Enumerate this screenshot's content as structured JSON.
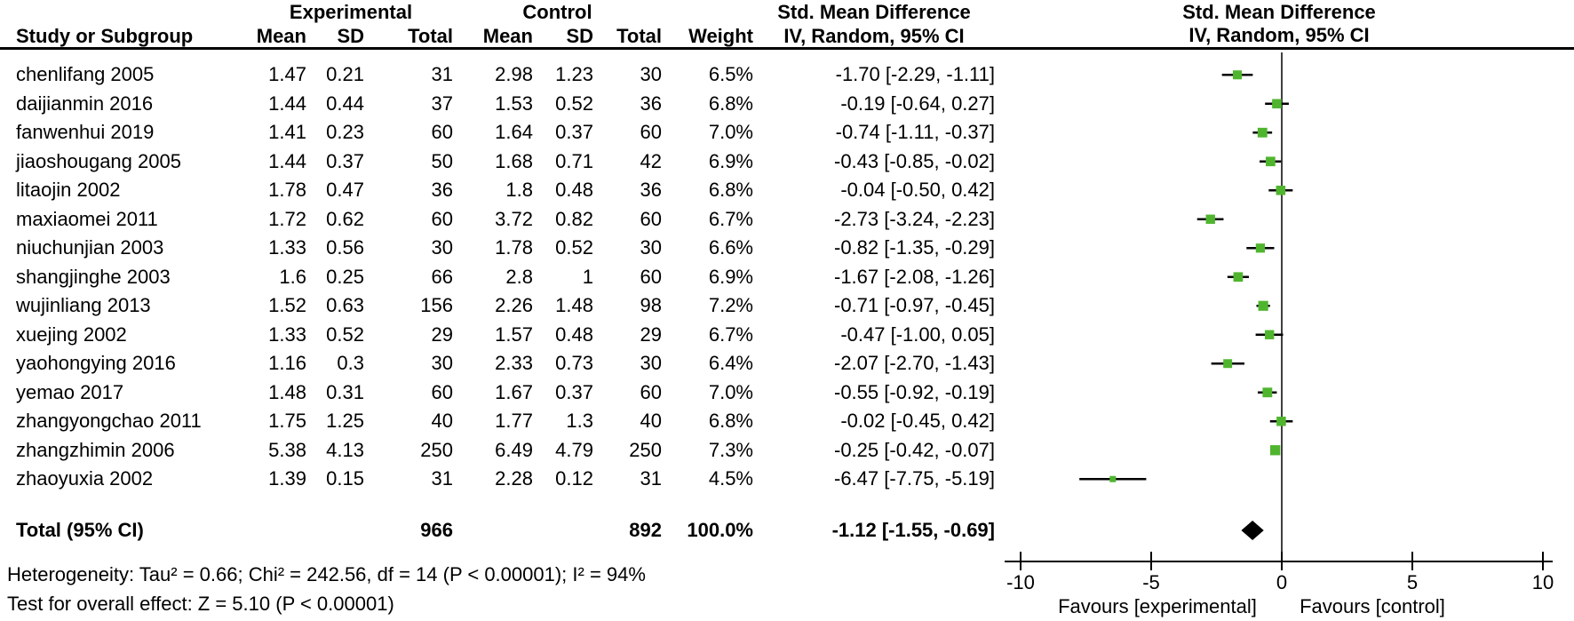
{
  "header": {
    "group_experimental": "Experimental",
    "group_control": "Control",
    "smd_left": "Std. Mean Difference",
    "smd_right": "Std. Mean Difference",
    "col_study": "Study or Subgroup",
    "col_mean_exp": "Mean",
    "col_sd_exp": "SD",
    "col_total_exp": "Total",
    "col_mean_ctrl": "Mean",
    "col_sd_ctrl": "SD",
    "col_total_ctrl": "Total",
    "col_weight": "Weight",
    "method_left": "IV, Random, 95% CI",
    "method_right": "IV, Random, 95% CI"
  },
  "chart_data": {
    "type": "forest",
    "title": "Std. Mean Difference, IV, Random, 95% CI forest plot",
    "x_axis": {
      "ticks": [
        -10,
        -5,
        0,
        5,
        10
      ],
      "min": -10,
      "max": 10
    },
    "studies": [
      {
        "name": "chenlifang 2005",
        "exp": {
          "mean": "1.47",
          "sd": "0.21",
          "total": "31"
        },
        "ctrl": {
          "mean": "2.98",
          "sd": "1.23",
          "total": "30"
        },
        "weight_pct": 6.5,
        "weight_text": "6.5%",
        "smd": -1.7,
        "ci_low": -2.29,
        "ci_high": -1.11,
        "ci_text": "-1.70 [-2.29, -1.11]"
      },
      {
        "name": "daijianmin 2016",
        "exp": {
          "mean": "1.44",
          "sd": "0.44",
          "total": "37"
        },
        "ctrl": {
          "mean": "1.53",
          "sd": "0.52",
          "total": "36"
        },
        "weight_pct": 6.8,
        "weight_text": "6.8%",
        "smd": -0.19,
        "ci_low": -0.64,
        "ci_high": 0.27,
        "ci_text": "-0.19 [-0.64, 0.27]"
      },
      {
        "name": "fanwenhui 2019",
        "exp": {
          "mean": "1.41",
          "sd": "0.23",
          "total": "60"
        },
        "ctrl": {
          "mean": "1.64",
          "sd": "0.37",
          "total": "60"
        },
        "weight_pct": 7.0,
        "weight_text": "7.0%",
        "smd": -0.74,
        "ci_low": -1.11,
        "ci_high": -0.37,
        "ci_text": "-0.74 [-1.11, -0.37]"
      },
      {
        "name": "jiaoshougang 2005",
        "exp": {
          "mean": "1.44",
          "sd": "0.37",
          "total": "50"
        },
        "ctrl": {
          "mean": "1.68",
          "sd": "0.71",
          "total": "42"
        },
        "weight_pct": 6.9,
        "weight_text": "6.9%",
        "smd": -0.43,
        "ci_low": -0.85,
        "ci_high": -0.02,
        "ci_text": "-0.43 [-0.85, -0.02]"
      },
      {
        "name": "litaojin 2002",
        "exp": {
          "mean": "1.78",
          "sd": "0.47",
          "total": "36"
        },
        "ctrl": {
          "mean": "1.8",
          "sd": "0.48",
          "total": "36"
        },
        "weight_pct": 6.8,
        "weight_text": "6.8%",
        "smd": -0.04,
        "ci_low": -0.5,
        "ci_high": 0.42,
        "ci_text": "-0.04 [-0.50, 0.42]"
      },
      {
        "name": "maxiaomei 2011",
        "exp": {
          "mean": "1.72",
          "sd": "0.62",
          "total": "60"
        },
        "ctrl": {
          "mean": "3.72",
          "sd": "0.82",
          "total": "60"
        },
        "weight_pct": 6.7,
        "weight_text": "6.7%",
        "smd": -2.73,
        "ci_low": -3.24,
        "ci_high": -2.23,
        "ci_text": "-2.73 [-3.24, -2.23]"
      },
      {
        "name": "niuchunjian 2003",
        "exp": {
          "mean": "1.33",
          "sd": "0.56",
          "total": "30"
        },
        "ctrl": {
          "mean": "1.78",
          "sd": "0.52",
          "total": "30"
        },
        "weight_pct": 6.6,
        "weight_text": "6.6%",
        "smd": -0.82,
        "ci_low": -1.35,
        "ci_high": -0.29,
        "ci_text": "-0.82 [-1.35, -0.29]"
      },
      {
        "name": "shangjinghe 2003",
        "exp": {
          "mean": "1.6",
          "sd": "0.25",
          "total": "66"
        },
        "ctrl": {
          "mean": "2.8",
          "sd": "1",
          "total": "60"
        },
        "weight_pct": 6.9,
        "weight_text": "6.9%",
        "smd": -1.67,
        "ci_low": -2.08,
        "ci_high": -1.26,
        "ci_text": "-1.67 [-2.08, -1.26]"
      },
      {
        "name": "wujinliang 2013",
        "exp": {
          "mean": "1.52",
          "sd": "0.63",
          "total": "156"
        },
        "ctrl": {
          "mean": "2.26",
          "sd": "1.48",
          "total": "98"
        },
        "weight_pct": 7.2,
        "weight_text": "7.2%",
        "smd": -0.71,
        "ci_low": -0.97,
        "ci_high": -0.45,
        "ci_text": "-0.71 [-0.97, -0.45]"
      },
      {
        "name": "xuejing 2002",
        "exp": {
          "mean": "1.33",
          "sd": "0.52",
          "total": "29"
        },
        "ctrl": {
          "mean": "1.57",
          "sd": "0.48",
          "total": "29"
        },
        "weight_pct": 6.7,
        "weight_text": "6.7%",
        "smd": -0.47,
        "ci_low": -1.0,
        "ci_high": 0.05,
        "ci_text": "-0.47 [-1.00, 0.05]"
      },
      {
        "name": "yaohongying 2016",
        "exp": {
          "mean": "1.16",
          "sd": "0.3",
          "total": "30"
        },
        "ctrl": {
          "mean": "2.33",
          "sd": "0.73",
          "total": "30"
        },
        "weight_pct": 6.4,
        "weight_text": "6.4%",
        "smd": -2.07,
        "ci_low": -2.7,
        "ci_high": -1.43,
        "ci_text": "-2.07 [-2.70, -1.43]"
      },
      {
        "name": "yemao 2017",
        "exp": {
          "mean": "1.48",
          "sd": "0.31",
          "total": "60"
        },
        "ctrl": {
          "mean": "1.67",
          "sd": "0.37",
          "total": "60"
        },
        "weight_pct": 7.0,
        "weight_text": "7.0%",
        "smd": -0.55,
        "ci_low": -0.92,
        "ci_high": -0.19,
        "ci_text": "-0.55 [-0.92, -0.19]"
      },
      {
        "name": "zhangyongchao 2011",
        "exp": {
          "mean": "1.75",
          "sd": "1.25",
          "total": "40"
        },
        "ctrl": {
          "mean": "1.77",
          "sd": "1.3",
          "total": "40"
        },
        "weight_pct": 6.8,
        "weight_text": "6.8%",
        "smd": -0.02,
        "ci_low": -0.45,
        "ci_high": 0.42,
        "ci_text": "-0.02 [-0.45, 0.42]"
      },
      {
        "name": "zhangzhimin 2006",
        "exp": {
          "mean": "5.38",
          "sd": "4.13",
          "total": "250"
        },
        "ctrl": {
          "mean": "6.49",
          "sd": "4.79",
          "total": "250"
        },
        "weight_pct": 7.3,
        "weight_text": "7.3%",
        "smd": -0.25,
        "ci_low": -0.42,
        "ci_high": -0.07,
        "ci_text": "-0.25 [-0.42, -0.07]"
      },
      {
        "name": "zhaoyuxia 2002",
        "exp": {
          "mean": "1.39",
          "sd": "0.15",
          "total": "31"
        },
        "ctrl": {
          "mean": "2.28",
          "sd": "0.12",
          "total": "31"
        },
        "weight_pct": 4.5,
        "weight_text": "4.5%",
        "smd": -6.47,
        "ci_low": -7.75,
        "ci_high": -5.19,
        "ci_text": "-6.47 [-7.75, -5.19]"
      }
    ],
    "overall": {
      "label": "Total (95% CI)",
      "exp_total": "966",
      "ctrl_total": "892",
      "weight_text": "100.0%",
      "smd": -1.12,
      "ci_low": -1.55,
      "ci_high": -0.69,
      "ci_text": "-1.12 [-1.55, -0.69]"
    }
  },
  "footnotes": {
    "heterogeneity": "Heterogeneity: Tau² = 0.66; Chi² = 242.56, df = 14 (P < 0.00001); I² = 94%",
    "overall_effect": "Test for overall effect: Z = 5.10 (P < 0.00001)"
  },
  "plot": {
    "favours_left": "Favours [experimental]",
    "favours_right": "Favours [control]",
    "marker_color": "#4fb52e",
    "ci_line_color": "#000000",
    "zero_line_color": "#3f3f3f",
    "axis_color": "#000000",
    "diamond_color": "#000000"
  }
}
